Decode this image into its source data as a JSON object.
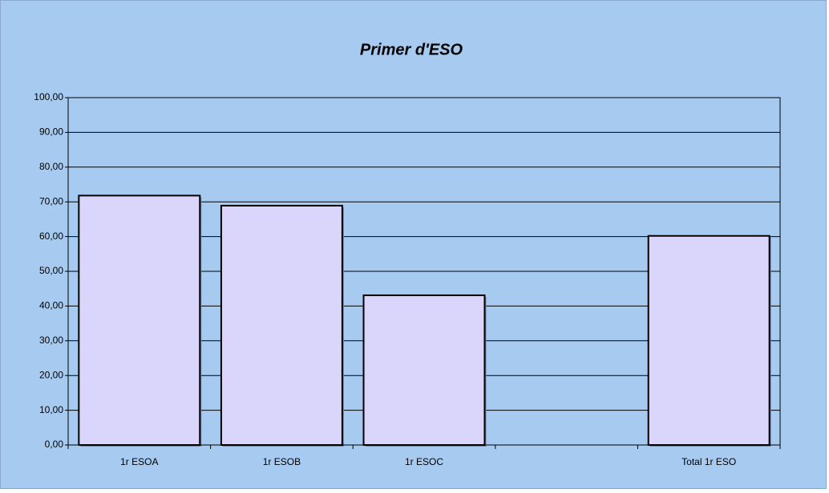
{
  "chart_data": {
    "type": "bar",
    "title": "Primer  d'ESO",
    "categories": [
      "1r ESOA",
      "1r ESOB",
      "1r ESOC",
      null,
      "Total 1r ESO"
    ],
    "values": [
      71.8,
      68.9,
      43.1,
      null,
      60.2
    ],
    "color": "#d9d5fb",
    "ylim": [
      0,
      100
    ],
    "yticks": [
      {
        "value": 0,
        "label": "0,00"
      },
      {
        "value": 10,
        "label": "10,00"
      },
      {
        "value": 20,
        "label": "20,00"
      },
      {
        "value": 30,
        "label": "30,00"
      },
      {
        "value": 40,
        "label": "40,00"
      },
      {
        "value": 50,
        "label": "50,00"
      },
      {
        "value": 60,
        "label": "60,00"
      },
      {
        "value": 70,
        "label": "70,00"
      },
      {
        "value": 80,
        "label": "80,00"
      },
      {
        "value": 90,
        "label": "90,00"
      },
      {
        "value": 100,
        "label": "100,00"
      }
    ],
    "grid": true
  }
}
